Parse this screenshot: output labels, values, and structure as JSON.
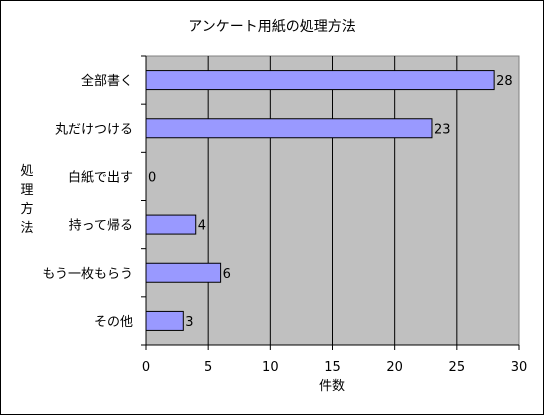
{
  "chart_data": {
    "type": "bar",
    "orientation": "horizontal",
    "title": "アンケート用紙の処理方法",
    "xlabel": "件数",
    "ylabel": "処理方法",
    "categories": [
      "全部書く",
      "丸だけつける",
      "白紙で出す",
      "持って帰る",
      "もう一枚もらう",
      "その他"
    ],
    "values": [
      28,
      23,
      0,
      4,
      6,
      3
    ],
    "xlim": [
      0,
      30
    ],
    "x_ticks": [
      0,
      5,
      10,
      15,
      20,
      25,
      30
    ],
    "grid": "vertical",
    "legend": "none",
    "data_labels": true,
    "colors": {
      "plot_bg": "#c0c0c0",
      "bar_fill": "#9999ff",
      "bar_stroke": "#000000",
      "grid": "#000000"
    }
  }
}
